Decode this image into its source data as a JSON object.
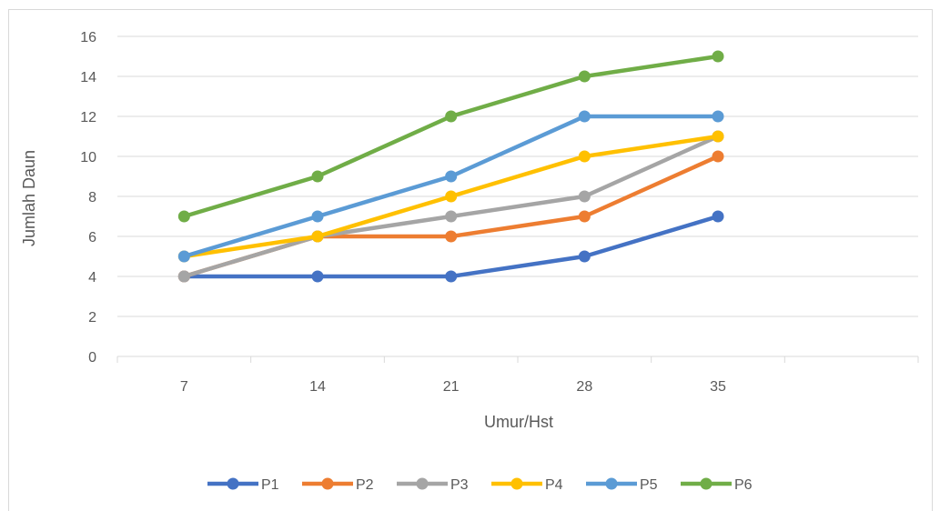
{
  "chart_data": {
    "type": "line",
    "title": "",
    "xlabel": "Umur/Hst",
    "ylabel": "Jumlah Daun",
    "categories": [
      "7",
      "14",
      "21",
      "28",
      "35"
    ],
    "ylim": [
      0,
      16
    ],
    "yticks": [
      0,
      2,
      4,
      6,
      8,
      10,
      12,
      14,
      16
    ],
    "grid": true,
    "legend_position": "bottom",
    "series": [
      {
        "name": "P1",
        "color": "#4472C4",
        "values": [
          4,
          4,
          4,
          5,
          7
        ]
      },
      {
        "name": "P2",
        "color": "#ED7D31",
        "values": [
          4,
          6,
          6,
          7,
          10
        ]
      },
      {
        "name": "P3",
        "color": "#A5A5A5",
        "values": [
          4,
          6,
          7,
          8,
          11
        ]
      },
      {
        "name": "P4",
        "color": "#FFC000",
        "values": [
          5,
          6,
          8,
          10,
          11
        ]
      },
      {
        "name": "P5",
        "color": "#5B9BD5",
        "values": [
          5,
          7,
          9,
          12,
          12
        ]
      },
      {
        "name": "P6",
        "color": "#70AD47",
        "values": [
          7,
          9,
          12,
          14,
          15
        ]
      }
    ]
  }
}
